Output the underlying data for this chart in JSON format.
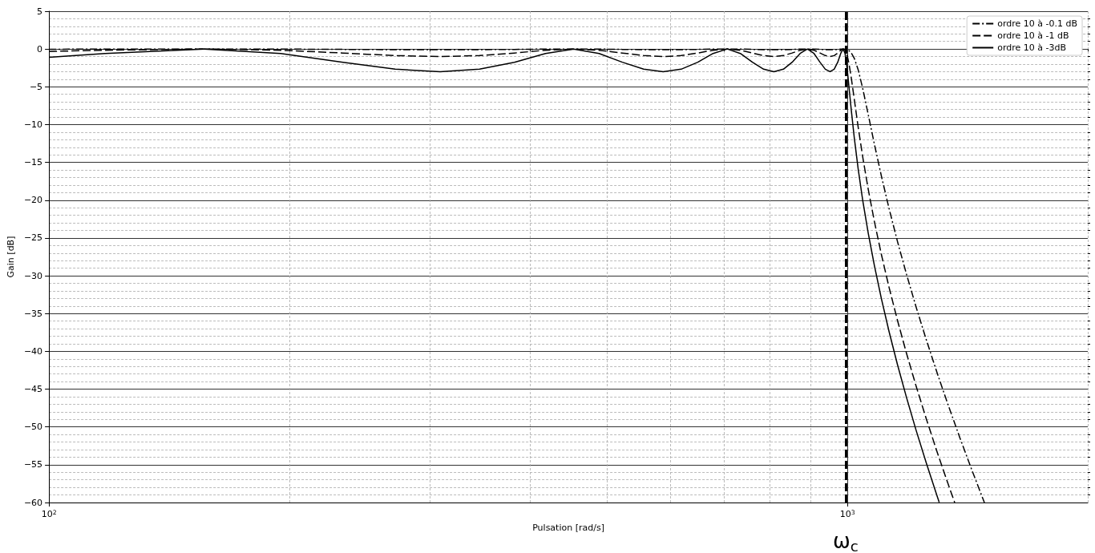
{
  "chart_data": {
    "type": "line",
    "xlabel": "Pulsation [rad/s]",
    "ylabel": "Gain [dB]",
    "log": "x",
    "xlim": [
      100,
      2000
    ],
    "ylim": [
      -60,
      5
    ],
    "xticks": [
      {
        "value": 100,
        "label": "10$^{2}$"
      },
      {
        "value": 1000,
        "label": "10$^{3}$"
      }
    ],
    "yticks": [
      -60,
      -55,
      -50,
      -45,
      -40,
      -35,
      -30,
      -25,
      -20,
      -15,
      -10,
      -5,
      0,
      5
    ],
    "grid": true,
    "legend": "top right",
    "marker": "none",
    "ref_lines": [
      {
        "axis": "x",
        "value": 995,
        "label": "ω$_{c}$",
        "color": "#000000",
        "line_style": "dashed"
      }
    ],
    "series": [
      {
        "name": "ordre 10 à -0.1 dB",
        "color": "#000000",
        "line_style": "dashdot",
        "x": [
          100,
          117.5,
          156.4,
          195.1,
          233.5,
          271.4,
          309.0,
          346.1,
          382.7,
          418.7,
          454.0,
          488.6,
          522.5,
          555.6,
          587.8,
          619.1,
          649.5,
          678.8,
          707.1,
          734.3,
          760.4,
          785.3,
          809.0,
          831.5,
          852.6,
          872.5,
          891.0,
          908.1,
          923.9,
          938.2,
          951.1,
          962.5,
          972.4,
          980.8,
          987.7,
          993.1,
          996.9,
          999.2,
          1000,
          1001.3,
          1005.0,
          1011.3,
          1020.1,
          1031.4,
          1045.3,
          1061.9,
          1081.1,
          1103.0,
          1127.6,
          1155.1,
          1185.5,
          1218.8,
          1255.2,
          1294.7,
          1337.4,
          1383.5,
          1433.1,
          1484.3
        ],
        "values": [
          -0.03,
          -0.01,
          0,
          -0.01,
          -0.05,
          -0.09,
          -0.1,
          -0.09,
          -0.05,
          -0.01,
          0,
          -0.01,
          -0.05,
          -0.09,
          -0.1,
          -0.09,
          -0.05,
          -0.01,
          0,
          -0.01,
          -0.05,
          -0.09,
          -0.1,
          -0.09,
          -0.05,
          -0.01,
          0,
          -0.01,
          -0.05,
          -0.09,
          -0.1,
          -0.09,
          -0.05,
          -0.01,
          0,
          -0.01,
          -0.05,
          -0.09,
          -0.1,
          -0.13,
          -0.23,
          -0.53,
          -1.24,
          -2.73,
          -5.26,
          -8.69,
          -12.64,
          -16.83,
          -21.11,
          -25.44,
          -29.77,
          -34.11,
          -38.45,
          -42.8,
          -47.14,
          -51.48,
          -55.82,
          -60
        ]
      },
      {
        "name": "ordre 10 à -1 dB",
        "color": "#000000",
        "line_style": "dashed",
        "x": [
          100,
          117.5,
          156.4,
          195.1,
          233.5,
          271.4,
          309.0,
          346.1,
          382.7,
          418.7,
          454.0,
          488.6,
          522.5,
          555.6,
          587.8,
          619.1,
          649.5,
          678.8,
          707.1,
          734.3,
          760.4,
          785.3,
          809.0,
          831.5,
          852.6,
          872.5,
          891.0,
          908.1,
          923.9,
          938.2,
          951.1,
          962.5,
          972.4,
          980.8,
          987.7,
          993.1,
          996.9,
          999.2,
          1000,
          1001.3,
          1005.0,
          1011.3,
          1020.1,
          1031.4,
          1045.3,
          1061.9,
          1081.1,
          1103.0,
          1127.6,
          1155.1,
          1185.5,
          1218.8,
          1255.2,
          1294.7,
          1337.4,
          1362.4
        ],
        "values": [
          -0.32,
          -0.16,
          0,
          -0.16,
          -0.53,
          -0.87,
          -1,
          -0.87,
          -0.53,
          -0.16,
          0,
          -0.16,
          -0.53,
          -0.87,
          -1,
          -0.87,
          -0.53,
          -0.16,
          0,
          -0.16,
          -0.53,
          -0.87,
          -1,
          -0.87,
          -0.53,
          -0.16,
          0,
          -0.16,
          -0.53,
          -0.87,
          -1,
          -0.87,
          -0.53,
          -0.16,
          0,
          -0.16,
          -0.53,
          -0.87,
          -1,
          -1.24,
          -2.09,
          -3.86,
          -6.69,
          -10.31,
          -14.35,
          -18.58,
          -22.88,
          -27.21,
          -31.54,
          -35.88,
          -40.23,
          -44.57,
          -48.91,
          -53.26,
          -57.6,
          -60
        ]
      },
      {
        "name": "ordre 10 à -3dB",
        "color": "#000000",
        "line_style": "solid",
        "x": [
          100,
          117.5,
          156.4,
          195.1,
          233.5,
          271.4,
          309.0,
          346.1,
          382.7,
          418.7,
          454.0,
          488.6,
          522.5,
          555.6,
          587.8,
          619.1,
          649.5,
          678.8,
          707.1,
          734.3,
          760.4,
          785.3,
          809.0,
          831.5,
          852.6,
          872.5,
          891.0,
          908.1,
          923.9,
          938.2,
          951.1,
          962.5,
          972.4,
          980.8,
          987.7,
          993.1,
          996.9,
          999.2,
          1000,
          1001.3,
          1005.0,
          1011.3,
          1020.1,
          1031.4,
          1045.3,
          1061.9,
          1081.1,
          1103.0,
          1127.6,
          1155.1,
          1185.5,
          1218.8,
          1255.2,
          1294.7,
          1303.0
        ],
        "values": [
          -1.1,
          -0.59,
          0,
          -0.59,
          -1.75,
          -2.67,
          -3,
          -2.67,
          -1.75,
          -0.59,
          0,
          -0.59,
          -1.75,
          -2.67,
          -3,
          -2.67,
          -1.75,
          -0.59,
          0,
          -0.59,
          -1.75,
          -2.67,
          -3,
          -2.67,
          -1.75,
          -0.59,
          0,
          -0.59,
          -1.75,
          -2.67,
          -3,
          -2.67,
          -1.75,
          -0.59,
          0,
          -0.59,
          -1.75,
          -2.67,
          -3,
          -3.55,
          -5.28,
          -8.13,
          -11.79,
          -15.85,
          -20.08,
          -24.38,
          -28.71,
          -33.05,
          -37.39,
          -41.73,
          -46.07,
          -50.42,
          -54.76,
          -59.1,
          -59.97
        ]
      }
    ]
  }
}
